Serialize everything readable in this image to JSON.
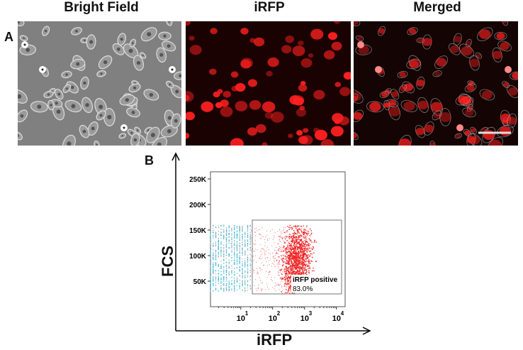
{
  "panel_labels": {
    "a": "A",
    "b": "B"
  },
  "images": [
    {
      "title": "Bright Field"
    },
    {
      "title": "iRFP"
    },
    {
      "title": "Merged"
    }
  ],
  "chart_data": {
    "type": "scatter",
    "xlabel": "iRFP",
    "ylabel": "FCS",
    "x_scale": "log",
    "xlim": [
      1,
      10000
    ],
    "ylim": [
      0,
      262144
    ],
    "x_ticks": [
      {
        "value": 10,
        "label": "10",
        "exp": "1"
      },
      {
        "value": 100,
        "label": "10",
        "exp": "2"
      },
      {
        "value": 1000,
        "label": "10",
        "exp": "3"
      },
      {
        "value": 10000,
        "label": "10",
        "exp": "4"
      }
    ],
    "y_ticks": [
      {
        "value": 50000,
        "label": "50K"
      },
      {
        "value": 100000,
        "label": "100K"
      },
      {
        "value": 150000,
        "label": "150K"
      },
      {
        "value": 200000,
        "label": "200K"
      },
      {
        "value": 250000,
        "label": "250K"
      }
    ],
    "gate": {
      "name": "iRFP positive",
      "percent": "83.0%",
      "x_range": [
        18,
        8000
      ],
      "y_range": [
        20000,
        170000
      ]
    },
    "series": [
      {
        "color": "#2ab8d8",
        "x_range": [
          1,
          20
        ],
        "y_range": [
          30000,
          160000
        ]
      },
      {
        "color": "#ee2222",
        "x_center": 600,
        "y_center": 90000
      }
    ],
    "grid": false
  },
  "colors": {
    "fluor": "#ff2020",
    "cyan": "#2ab8d8"
  }
}
